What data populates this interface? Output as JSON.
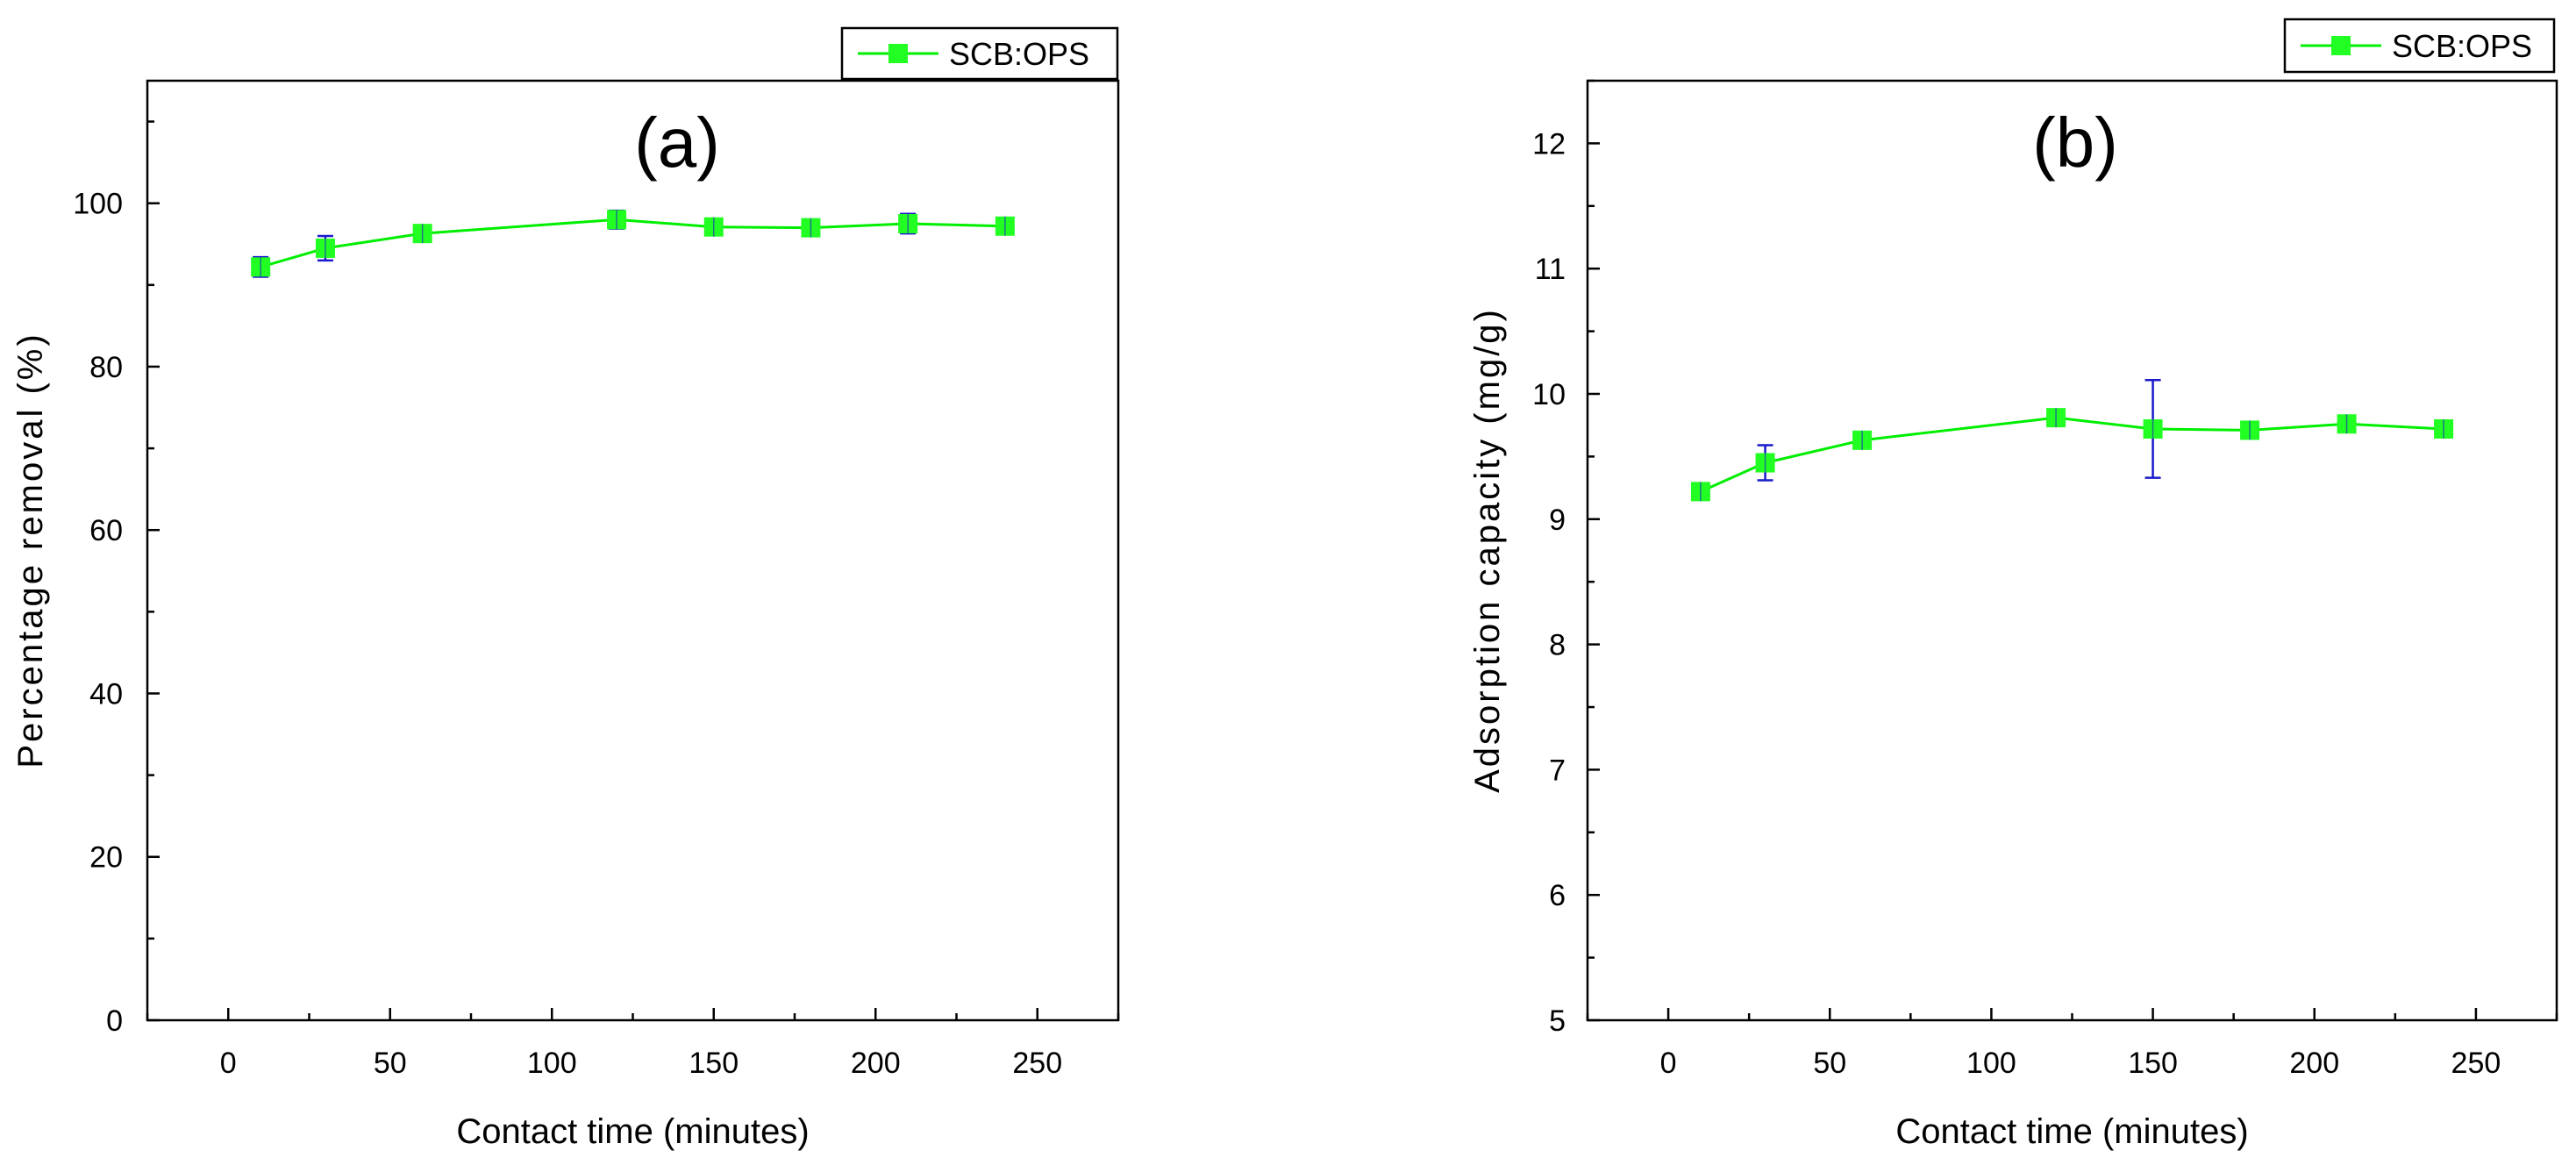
{
  "chart_data": [
    {
      "type": "line",
      "title": "(a)",
      "xlabel": "Contact time (minutes)",
      "ylabel": "Percentage removal (%)",
      "xlim": [
        -25,
        275
      ],
      "ylim": [
        0,
        115
      ],
      "xticks": [
        0,
        50,
        100,
        150,
        200,
        250
      ],
      "yticks": [
        0,
        20,
        40,
        60,
        80,
        100
      ],
      "x_tick_labels": [
        "0",
        "50",
        "100",
        "150",
        "200",
        "250"
      ],
      "y_tick_labels": [
        "0",
        "20",
        "40",
        "60",
        "80",
        "100"
      ],
      "legend": "top-right",
      "grid": false,
      "series": [
        {
          "name": "SCB:OPS",
          "color": "#00ee00",
          "marker_color": "#22ff22",
          "error_color": "#1a1acc",
          "x": [
            10,
            30,
            60,
            120,
            150,
            180,
            210,
            240
          ],
          "y": [
            92.2,
            94.5,
            96.3,
            98.0,
            97.1,
            97.0,
            97.5,
            97.2
          ],
          "error": [
            1.2,
            1.5,
            1.0,
            1.1,
            1.0,
            1.0,
            1.2,
            0.8
          ]
        }
      ]
    },
    {
      "type": "line",
      "title": "(b)",
      "xlabel": "Contact time (minutes)",
      "ylabel": "Adsorption capacity (mg/g)",
      "xlim": [
        -25,
        275
      ],
      "ylim": [
        5,
        12.5
      ],
      "xticks": [
        0,
        50,
        100,
        150,
        200,
        250
      ],
      "yticks": [
        5,
        6,
        7,
        8,
        9,
        10,
        11,
        12
      ],
      "x_tick_labels": [
        "0",
        "50",
        "100",
        "150",
        "200",
        "250"
      ],
      "y_tick_labels": [
        "5",
        "6",
        "7",
        "8",
        "9",
        "10",
        "11",
        "12"
      ],
      "legend": "top-right",
      "grid": false,
      "series": [
        {
          "name": "SCB:OPS",
          "color": "#00ee00",
          "marker_color": "#22ff22",
          "error_color": "#1a1acc",
          "x": [
            10,
            30,
            60,
            120,
            150,
            180,
            210,
            240
          ],
          "y": [
            9.22,
            9.45,
            9.63,
            9.81,
            9.72,
            9.71,
            9.76,
            9.72
          ],
          "error": [
            0.06,
            0.14,
            0.06,
            0.06,
            0.39,
            0.06,
            0.06,
            0.06
          ]
        }
      ]
    }
  ]
}
